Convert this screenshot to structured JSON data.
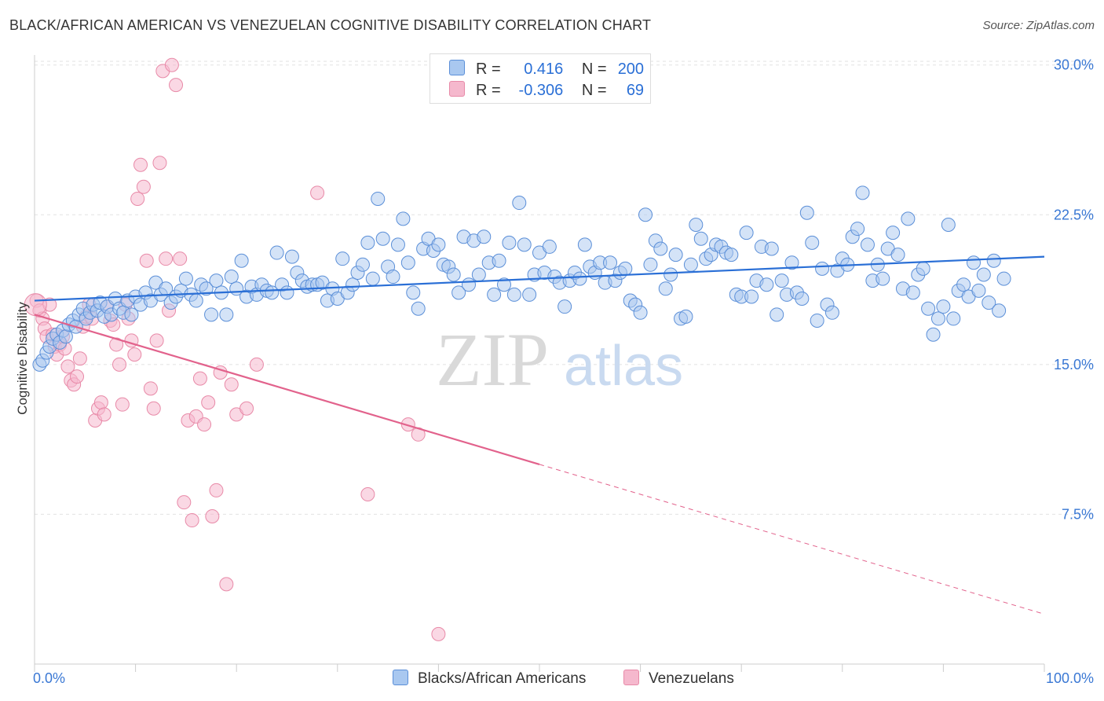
{
  "header": {
    "title": "BLACK/AFRICAN AMERICAN VS VENEZUELAN COGNITIVE DISABILITY CORRELATION CHART",
    "source": "Source: ZipAtlas.com"
  },
  "legend": {
    "r_label": "R =",
    "n_label": "N =",
    "blue": {
      "r": "0.416",
      "n": "200"
    },
    "pink": {
      "r": "-0.306",
      "n": "69"
    }
  },
  "watermark": {
    "zip": "ZIP",
    "atlas": "atlas"
  },
  "colors": {
    "blue_fill": "#a9c8f0",
    "blue_stroke": "#5b8fd8",
    "blue_line": "#2a6fd6",
    "pink_fill": "#f5b8cd",
    "pink_stroke": "#e88aa8",
    "pink_line": "#e2628c",
    "tick_text": "#3a78d4",
    "grid": "#e2e2e2"
  },
  "chart_data": {
    "type": "scatter",
    "title": "BLACK/AFRICAN AMERICAN VS VENEZUELAN COGNITIVE DISABILITY CORRELATION CHART",
    "xlabel": "",
    "ylabel": "Cognitive Disability",
    "xlim": [
      0,
      100
    ],
    "ylim": [
      0,
      30.5
    ],
    "x_tick_labels": [
      "0.0%",
      "100.0%"
    ],
    "y_ticks": [
      7.5,
      15.0,
      22.5,
      30.0
    ],
    "y_tick_labels": [
      "7.5%",
      "15.0%",
      "22.5%",
      "30.0%"
    ],
    "grid": true,
    "series": [
      {
        "name": "Blacks/African Americans",
        "r": 0.416,
        "n": 200,
        "trend": {
          "x": [
            0,
            100
          ],
          "y": [
            18.2,
            20.4
          ],
          "dashed_from": null
        },
        "points": [
          [
            0.5,
            15.0
          ],
          [
            0.8,
            15.2
          ],
          [
            1.2,
            15.6
          ],
          [
            1.5,
            15.9
          ],
          [
            1.8,
            16.3
          ],
          [
            2.2,
            16.5
          ],
          [
            2.5,
            16.1
          ],
          [
            2.8,
            16.7
          ],
          [
            3.1,
            16.4
          ],
          [
            3.4,
            17.0
          ],
          [
            3.8,
            17.2
          ],
          [
            4.1,
            16.9
          ],
          [
            4.4,
            17.5
          ],
          [
            4.8,
            17.8
          ],
          [
            5.1,
            17.3
          ],
          [
            5.5,
            17.6
          ],
          [
            5.8,
            18.0
          ],
          [
            6.2,
            17.7
          ],
          [
            6.5,
            18.1
          ],
          [
            6.9,
            17.4
          ],
          [
            7.2,
            17.9
          ],
          [
            7.6,
            17.5
          ],
          [
            8.0,
            18.3
          ],
          [
            8.4,
            17.8
          ],
          [
            8.8,
            17.6
          ],
          [
            9.2,
            18.2
          ],
          [
            9.6,
            17.5
          ],
          [
            10.0,
            18.4
          ],
          [
            10.5,
            18.0
          ],
          [
            11.0,
            18.6
          ],
          [
            11.5,
            18.2
          ],
          [
            12.0,
            19.1
          ],
          [
            12.5,
            18.5
          ],
          [
            13.0,
            18.8
          ],
          [
            13.5,
            18.1
          ],
          [
            14.0,
            18.4
          ],
          [
            14.5,
            18.7
          ],
          [
            15.0,
            19.3
          ],
          [
            15.5,
            18.5
          ],
          [
            16.0,
            18.2
          ],
          [
            16.5,
            19.0
          ],
          [
            17.0,
            18.8
          ],
          [
            17.5,
            17.5
          ],
          [
            18.0,
            19.2
          ],
          [
            18.5,
            18.6
          ],
          [
            19.0,
            17.5
          ],
          [
            19.5,
            19.4
          ],
          [
            20.0,
            18.8
          ],
          [
            20.5,
            20.2
          ],
          [
            21.0,
            18.4
          ],
          [
            21.5,
            18.9
          ],
          [
            22.0,
            18.5
          ],
          [
            22.5,
            19.0
          ],
          [
            23.0,
            18.7
          ],
          [
            23.5,
            18.6
          ],
          [
            24.0,
            20.6
          ],
          [
            24.5,
            19.0
          ],
          [
            25.0,
            18.6
          ],
          [
            25.5,
            20.4
          ],
          [
            26.0,
            19.6
          ],
          [
            26.5,
            19.2
          ],
          [
            27.0,
            18.9
          ],
          [
            27.5,
            19.0
          ],
          [
            28.0,
            19.0
          ],
          [
            28.5,
            19.1
          ],
          [
            29.0,
            18.2
          ],
          [
            29.5,
            18.8
          ],
          [
            30.0,
            18.3
          ],
          [
            30.5,
            20.3
          ],
          [
            31.0,
            18.6
          ],
          [
            31.5,
            19.0
          ],
          [
            32.0,
            19.6
          ],
          [
            32.5,
            20.0
          ],
          [
            33.0,
            21.1
          ],
          [
            33.5,
            19.3
          ],
          [
            34.0,
            23.3
          ],
          [
            34.5,
            21.3
          ],
          [
            35.0,
            19.9
          ],
          [
            35.5,
            19.4
          ],
          [
            36.0,
            21.0
          ],
          [
            36.5,
            22.3
          ],
          [
            37.0,
            20.1
          ],
          [
            37.5,
            18.6
          ],
          [
            38.0,
            17.8
          ],
          [
            38.5,
            20.8
          ],
          [
            39.0,
            21.3
          ],
          [
            39.5,
            20.7
          ],
          [
            40.0,
            21.0
          ],
          [
            40.5,
            20.0
          ],
          [
            41.0,
            19.9
          ],
          [
            41.5,
            19.5
          ],
          [
            42.0,
            18.6
          ],
          [
            42.5,
            21.4
          ],
          [
            43.0,
            19.0
          ],
          [
            43.5,
            21.2
          ],
          [
            44.0,
            19.5
          ],
          [
            44.5,
            21.4
          ],
          [
            45.0,
            20.1
          ],
          [
            45.5,
            18.5
          ],
          [
            46.0,
            20.2
          ],
          [
            46.5,
            19.0
          ],
          [
            47.0,
            21.1
          ],
          [
            47.5,
            18.5
          ],
          [
            48.0,
            23.1
          ],
          [
            48.5,
            21.0
          ],
          [
            49.0,
            18.5
          ],
          [
            49.5,
            19.5
          ],
          [
            50.0,
            20.6
          ],
          [
            50.5,
            19.6
          ],
          [
            51.0,
            20.9
          ],
          [
            51.5,
            19.4
          ],
          [
            52.0,
            19.1
          ],
          [
            52.5,
            17.9
          ],
          [
            53.0,
            19.2
          ],
          [
            53.5,
            19.6
          ],
          [
            54.0,
            19.3
          ],
          [
            54.5,
            21.0
          ],
          [
            55.0,
            19.9
          ],
          [
            55.5,
            19.6
          ],
          [
            56.0,
            20.1
          ],
          [
            56.5,
            19.1
          ],
          [
            57.0,
            20.1
          ],
          [
            57.5,
            19.2
          ],
          [
            58.0,
            19.6
          ],
          [
            58.5,
            19.8
          ],
          [
            59.0,
            18.2
          ],
          [
            59.5,
            18.0
          ],
          [
            60.0,
            17.6
          ],
          [
            60.5,
            22.5
          ],
          [
            61.0,
            20.0
          ],
          [
            61.5,
            21.2
          ],
          [
            62.0,
            20.8
          ],
          [
            62.5,
            18.8
          ],
          [
            63.0,
            19.5
          ],
          [
            63.5,
            20.5
          ],
          [
            64.0,
            17.3
          ],
          [
            64.5,
            17.4
          ],
          [
            65.0,
            20.0
          ],
          [
            65.5,
            22.0
          ],
          [
            66.0,
            21.3
          ],
          [
            66.5,
            20.3
          ],
          [
            67.0,
            20.5
          ],
          [
            67.5,
            21.0
          ],
          [
            68.0,
            20.9
          ],
          [
            68.5,
            20.6
          ],
          [
            69.0,
            20.5
          ],
          [
            69.5,
            18.5
          ],
          [
            70.0,
            18.4
          ],
          [
            70.5,
            21.6
          ],
          [
            71.0,
            18.4
          ],
          [
            71.5,
            19.2
          ],
          [
            72.0,
            20.9
          ],
          [
            72.5,
            19.0
          ],
          [
            73.0,
            20.8
          ],
          [
            73.5,
            17.5
          ],
          [
            74.0,
            19.2
          ],
          [
            74.5,
            18.5
          ],
          [
            75.0,
            20.1
          ],
          [
            75.5,
            18.6
          ],
          [
            76.0,
            18.3
          ],
          [
            76.5,
            22.6
          ],
          [
            77.0,
            21.1
          ],
          [
            77.5,
            17.2
          ],
          [
            78.0,
            19.8
          ],
          [
            78.5,
            18.0
          ],
          [
            79.0,
            17.6
          ],
          [
            79.5,
            19.7
          ],
          [
            80.0,
            20.3
          ],
          [
            80.5,
            20.0
          ],
          [
            81.0,
            21.4
          ],
          [
            81.5,
            21.8
          ],
          [
            82.0,
            23.6
          ],
          [
            82.5,
            21.0
          ],
          [
            83.0,
            19.2
          ],
          [
            83.5,
            20.0
          ],
          [
            84.0,
            19.3
          ],
          [
            84.5,
            20.8
          ],
          [
            85.0,
            21.6
          ],
          [
            85.5,
            20.5
          ],
          [
            86.0,
            18.8
          ],
          [
            86.5,
            22.3
          ],
          [
            87.0,
            18.6
          ],
          [
            87.5,
            19.5
          ],
          [
            88.0,
            19.8
          ],
          [
            88.5,
            17.8
          ],
          [
            89.0,
            16.5
          ],
          [
            89.5,
            17.3
          ],
          [
            90.0,
            17.9
          ],
          [
            90.5,
            22.0
          ],
          [
            91.0,
            17.3
          ],
          [
            91.5,
            18.7
          ],
          [
            92.0,
            19.0
          ],
          [
            92.5,
            18.4
          ],
          [
            93.0,
            20.1
          ],
          [
            93.5,
            18.7
          ],
          [
            94.0,
            19.5
          ],
          [
            94.5,
            18.1
          ],
          [
            95.0,
            20.2
          ],
          [
            95.5,
            17.7
          ],
          [
            96.0,
            19.3
          ]
        ]
      },
      {
        "name": "Venezuelans",
        "r": -0.306,
        "n": 69,
        "trend": {
          "x": [
            0,
            100
          ],
          "y": [
            17.5,
            2.5
          ],
          "dashed_from": 50
        },
        "points": [
          [
            0.2,
            18.2
          ],
          [
            0.5,
            17.7
          ],
          [
            0.8,
            17.3
          ],
          [
            1.0,
            16.8
          ],
          [
            1.2,
            16.4
          ],
          [
            1.5,
            18.0
          ],
          [
            1.8,
            16.5
          ],
          [
            2.0,
            15.9
          ],
          [
            2.2,
            15.5
          ],
          [
            2.5,
            16.0
          ],
          [
            2.8,
            16.4
          ],
          [
            3.0,
            15.8
          ],
          [
            3.3,
            14.9
          ],
          [
            3.6,
            14.2
          ],
          [
            3.9,
            14.0
          ],
          [
            4.2,
            14.4
          ],
          [
            4.5,
            15.3
          ],
          [
            4.8,
            16.9
          ],
          [
            5.1,
            17.4
          ],
          [
            5.4,
            18.0
          ],
          [
            5.7,
            17.3
          ],
          [
            6.0,
            12.2
          ],
          [
            6.3,
            12.8
          ],
          [
            6.6,
            13.1
          ],
          [
            6.9,
            12.5
          ],
          [
            7.2,
            17.9
          ],
          [
            7.5,
            17.2
          ],
          [
            7.8,
            17.0
          ],
          [
            8.1,
            16.0
          ],
          [
            8.4,
            15.0
          ],
          [
            8.7,
            13.0
          ],
          [
            9.0,
            18.0
          ],
          [
            9.3,
            17.3
          ],
          [
            9.6,
            16.2
          ],
          [
            9.9,
            15.5
          ],
          [
            10.2,
            23.3
          ],
          [
            10.5,
            25.0
          ],
          [
            10.8,
            23.9
          ],
          [
            11.1,
            20.2
          ],
          [
            11.5,
            13.8
          ],
          [
            11.8,
            12.8
          ],
          [
            12.1,
            16.2
          ],
          [
            12.4,
            25.1
          ],
          [
            12.7,
            29.7
          ],
          [
            13.0,
            20.3
          ],
          [
            13.3,
            17.7
          ],
          [
            13.6,
            30.0
          ],
          [
            14.0,
            29.0
          ],
          [
            14.4,
            20.3
          ],
          [
            14.8,
            8.1
          ],
          [
            15.2,
            12.2
          ],
          [
            15.6,
            7.2
          ],
          [
            16.0,
            12.4
          ],
          [
            16.4,
            14.3
          ],
          [
            16.8,
            12.0
          ],
          [
            17.2,
            13.1
          ],
          [
            17.6,
            7.4
          ],
          [
            18.0,
            8.7
          ],
          [
            18.4,
            14.6
          ],
          [
            19.0,
            4.0
          ],
          [
            19.5,
            14.0
          ],
          [
            20.0,
            12.5
          ],
          [
            21.0,
            12.8
          ],
          [
            22.0,
            15.0
          ],
          [
            28.0,
            23.6
          ],
          [
            33.0,
            8.5
          ],
          [
            37.0,
            12.0
          ],
          [
            38.0,
            11.5
          ],
          [
            40.0,
            1.5
          ]
        ]
      }
    ]
  },
  "bottom_legend": {
    "blue_label": "Blacks/African Americans",
    "pink_label": "Venezuelans"
  }
}
